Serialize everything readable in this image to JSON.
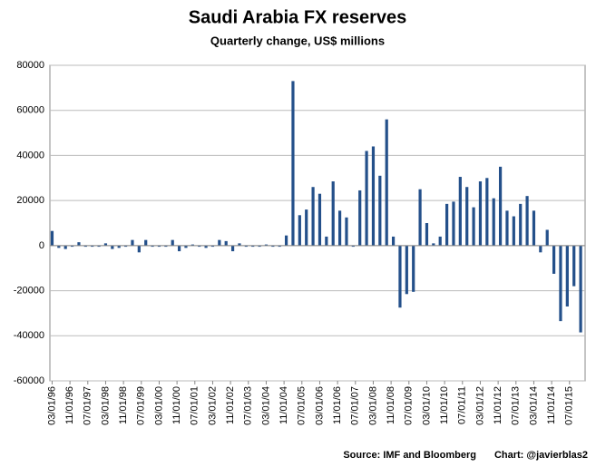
{
  "chart_data": {
    "type": "bar",
    "title": "Saudi Arabia FX reserves",
    "subtitle": "Quarterly change, US$ millions",
    "source": "Source: IMF and Bloomberg",
    "credit": "Chart: @javierblas2",
    "color": "#24508a",
    "grid": true,
    "ylim": [
      -60000,
      80000
    ],
    "yticks": [
      -60000,
      -40000,
      -20000,
      0,
      20000,
      40000,
      60000,
      80000
    ],
    "xticks": [
      "03/01/96",
      "11/01/96",
      "07/01/97",
      "03/01/98",
      "11/01/98",
      "07/01/99",
      "03/01/00",
      "11/01/00",
      "07/01/01",
      "03/01/02",
      "11/01/02",
      "07/01/03",
      "03/01/04",
      "11/01/04",
      "07/01/05",
      "03/01/06",
      "11/01/06",
      "07/01/07",
      "03/01/08",
      "11/01/08",
      "07/01/09",
      "03/01/10",
      "11/01/10",
      "07/01/11",
      "03/01/12",
      "11/01/12",
      "07/01/13",
      "03/01/14",
      "11/01/14",
      "07/01/15"
    ],
    "x": [
      "03/01/96",
      "06/01/96",
      "09/01/96",
      "12/01/96",
      "03/01/97",
      "06/01/97",
      "09/01/97",
      "12/01/97",
      "03/01/98",
      "06/01/98",
      "09/01/98",
      "12/01/98",
      "03/01/99",
      "06/01/99",
      "09/01/99",
      "12/01/99",
      "03/01/00",
      "06/01/00",
      "09/01/00",
      "12/01/00",
      "03/01/01",
      "06/01/01",
      "09/01/01",
      "12/01/01",
      "03/01/02",
      "06/01/02",
      "09/01/02",
      "12/01/02",
      "03/01/03",
      "06/01/03",
      "09/01/03",
      "12/01/03",
      "03/01/04",
      "06/01/04",
      "09/01/04",
      "12/01/04",
      "03/01/05",
      "06/01/05",
      "09/01/05",
      "12/01/05",
      "03/01/06",
      "06/01/06",
      "09/01/06",
      "12/01/06",
      "03/01/07",
      "06/01/07",
      "09/01/07",
      "12/01/07",
      "03/01/08",
      "06/01/08",
      "09/01/08",
      "12/01/08",
      "03/01/09",
      "06/01/09",
      "09/01/09",
      "12/01/09",
      "03/01/10",
      "06/01/10",
      "09/01/10",
      "12/01/10",
      "03/01/11",
      "06/01/11",
      "09/01/11",
      "12/01/11",
      "03/01/12",
      "06/01/12",
      "09/01/12",
      "12/01/12",
      "03/01/13",
      "06/01/13",
      "09/01/13",
      "12/01/13",
      "03/01/14",
      "06/01/14",
      "09/01/14",
      "12/01/14",
      "03/01/15",
      "06/01/15",
      "09/01/15",
      "12/01/15"
    ],
    "values": [
      6500,
      -1000,
      -1500,
      -500,
      1500,
      -500,
      -500,
      -500,
      1000,
      -1500,
      -1000,
      -500,
      2500,
      -3000,
      2500,
      -500,
      -500,
      -500,
      2500,
      -2500,
      -1000,
      500,
      -500,
      -1000,
      -500,
      2500,
      2000,
      -2500,
      1000,
      -500,
      -500,
      -500,
      500,
      -500,
      -500,
      4500,
      73000,
      13500,
      16000,
      26000,
      23000,
      4000,
      28500,
      15500,
      12500,
      -500,
      24500,
      42000,
      44000,
      31000,
      56000,
      4000,
      -27500,
      -21500,
      -20500,
      25000,
      10000,
      1000,
      4000,
      18500,
      19500,
      30500,
      26000,
      17000,
      28500,
      30000,
      21000,
      35000,
      15500,
      13000,
      18500,
      22000,
      15500,
      -3000,
      7000,
      -12500,
      -33500,
      -27000,
      -18000,
      -38500
    ]
  }
}
